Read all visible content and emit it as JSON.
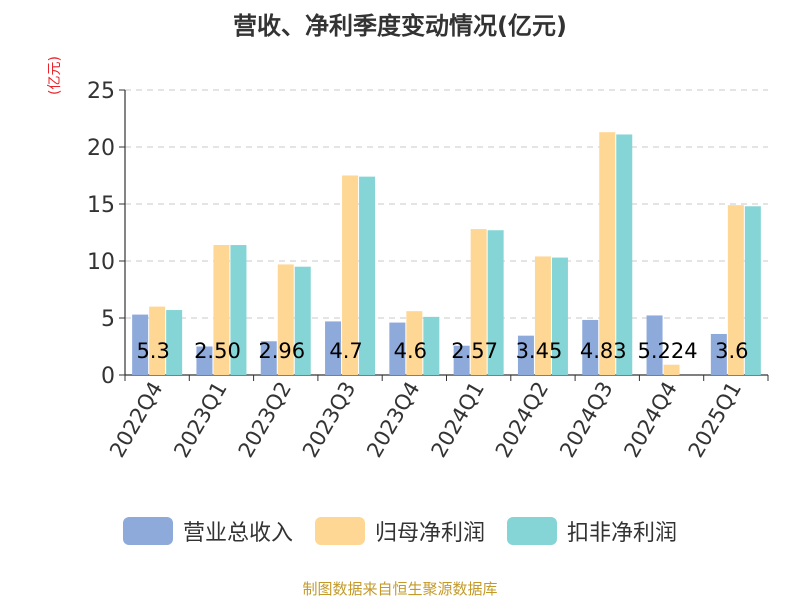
{
  "chart_data": {
    "type": "bar",
    "title": "营收、净利季度变动情况(亿元)",
    "ylabel": "(亿元)",
    "xlabel": "",
    "ylim": [
      0,
      25
    ],
    "yticks": [
      0,
      5,
      10,
      15,
      20,
      25
    ],
    "grid": true,
    "legend_position": "bottom",
    "categories": [
      "2022Q4",
      "2023Q1",
      "2023Q2",
      "2023Q3",
      "2023Q4",
      "2024Q1",
      "2024Q2",
      "2024Q3",
      "2024Q4",
      "2025Q1"
    ],
    "series": [
      {
        "name": "营业总收入",
        "color": "#8eaadb",
        "values": [
          5.3,
          2.5,
          2.96,
          4.7,
          4.6,
          2.57,
          3.45,
          4.83,
          5.224,
          3.6
        ]
      },
      {
        "name": "归母净利润",
        "color": "#ffd794",
        "values": [
          6.0,
          11.4,
          9.7,
          17.5,
          5.6,
          12.8,
          10.4,
          21.3,
          0.9,
          14.9
        ]
      },
      {
        "name": "扣非净利润",
        "color": "#86d5d6",
        "values": [
          5.7,
          11.4,
          9.5,
          17.4,
          5.1,
          12.7,
          10.3,
          21.1,
          0.0,
          14.8
        ]
      }
    ],
    "data_labels": [
      "5.3",
      "2.50",
      "2.96",
      "4.7",
      "4.6",
      "2.57",
      "3.45",
      "4.83",
      "5.224",
      "3.6"
    ]
  },
  "footer": "制图数据来自恒生聚源数据库"
}
